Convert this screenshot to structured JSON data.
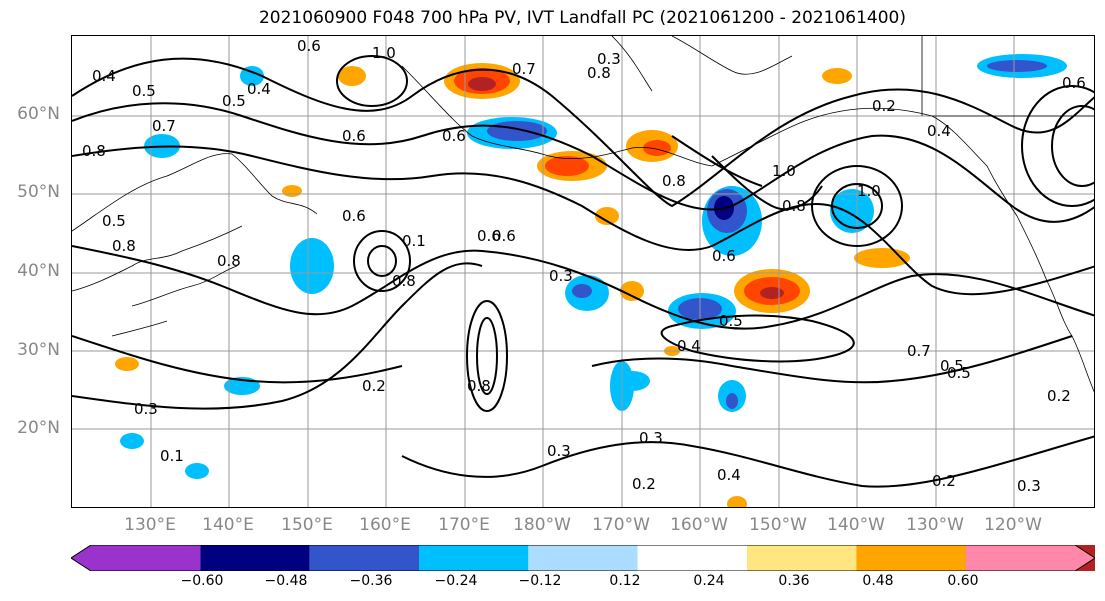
{
  "title": "2021060900 F048 700 hPa PV, IVT Landfall PC (2021061200 - 2021061400)",
  "lat_labels": [
    "60°N",
    "50°N",
    "40°N",
    "30°N",
    "20°N"
  ],
  "lon_labels": [
    "130°E",
    "140°E",
    "150°E",
    "160°E",
    "170°E",
    "180°W",
    "170°W",
    "160°W",
    "150°W",
    "140°W",
    "130°W",
    "120°W"
  ],
  "colorbar": {
    "ticks": [
      "−0.60",
      "−0.48",
      "−0.36",
      "−0.24",
      "−0.12",
      "0.12",
      "0.24",
      "0.36",
      "0.48",
      "0.60"
    ],
    "colors": [
      "#9933cc",
      "#000080",
      "#3355cc",
      "#00bfff",
      "#aaddff",
      "#ffffff",
      "#ffe680",
      "#ffa500",
      "#ff4500",
      "#b22222",
      "#ff88aa"
    ]
  },
  "contour_labels": [
    "0.4",
    "0.5",
    "0.5",
    "0.4",
    "0.6",
    "1.0",
    "0.7",
    "0.8",
    "0.3",
    "0.2",
    "0.6",
    "0.7",
    "0.8",
    "0.6",
    "0.6",
    "0.8",
    "1.0",
    "0.8",
    "0.6",
    "0.1",
    "1.0",
    "0.8",
    "0.4",
    "0.5",
    "0.8",
    "0.6",
    "0.6",
    "0.8",
    "0.3",
    "0.5",
    "0.4",
    "0.7",
    "0.5",
    "0.2",
    "0.3",
    "0.2",
    "0.8",
    "0.3",
    "0.3",
    "0.2",
    "0.4",
    "0.2",
    "0.3",
    "0.1",
    "0.6",
    "0.5"
  ],
  "colors": {
    "lat_lon_label": "#888888",
    "contour": "#000000",
    "grid": "#999999"
  }
}
